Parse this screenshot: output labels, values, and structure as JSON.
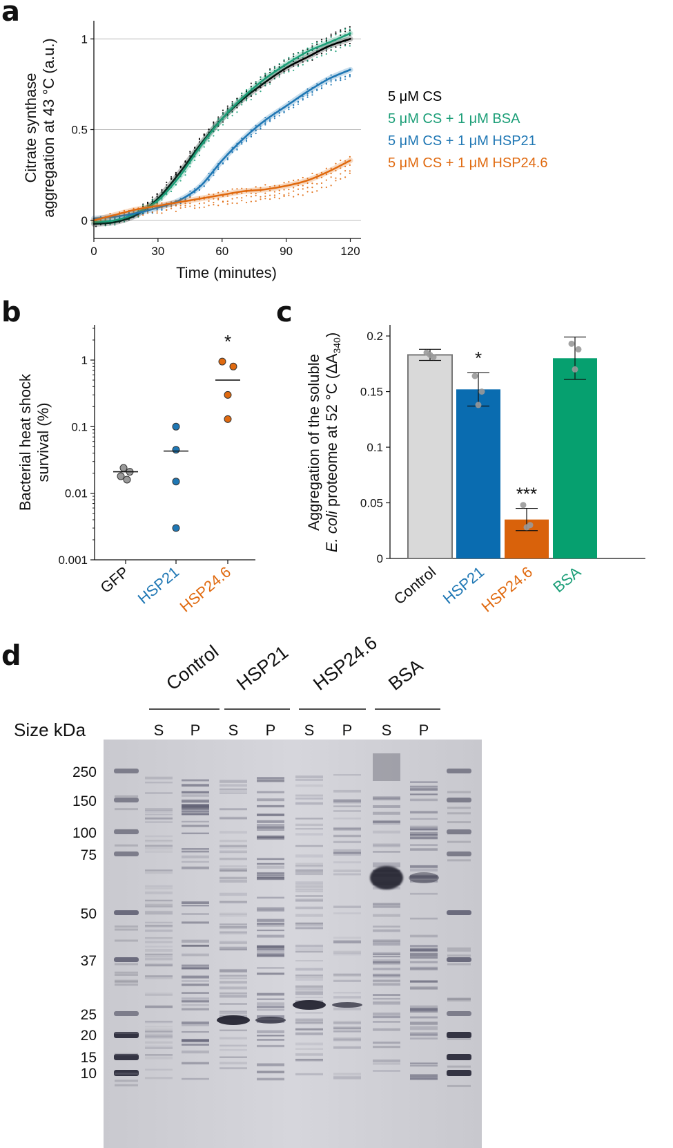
{
  "panel_labels": {
    "a": "a",
    "b": "b",
    "c": "c",
    "d": "d"
  },
  "colors": {
    "cs": "#000000",
    "bsa": "#1b9e77",
    "hsp21": "#1f77b4",
    "hsp246": "#e06a10",
    "control_bar": "#d9d9d9",
    "grid": "#bbbbbb"
  },
  "chart_data": [
    {
      "type": "line",
      "panel": "a",
      "xlabel": "Time (minutes)",
      "ylabel_line1": "Citrate synthase",
      "ylabel_line2": "aggregation at 43 °C  (a.u.)",
      "xlim": [
        0,
        125
      ],
      "ylim": [
        -0.1,
        1.1
      ],
      "xticks": [
        "0",
        "30",
        "60",
        "90",
        "120"
      ],
      "xtick_values": [
        0,
        30,
        60,
        90,
        120
      ],
      "yticks": [
        "0",
        "0.5",
        "1"
      ],
      "ytick_values": [
        0,
        0.5,
        1
      ],
      "x": [
        0,
        10,
        20,
        30,
        40,
        50,
        60,
        70,
        80,
        90,
        100,
        110,
        120
      ],
      "series": [
        {
          "name": "5 μM CS",
          "color": "#000000",
          "values": [
            -0.02,
            -0.01,
            0.03,
            0.12,
            0.26,
            0.42,
            0.56,
            0.67,
            0.76,
            0.84,
            0.9,
            0.96,
            1.0
          ]
        },
        {
          "name": "5 μM CS + 1 μM BSA",
          "color": "#1b9e77",
          "values": [
            -0.01,
            0.0,
            0.04,
            0.11,
            0.24,
            0.41,
            0.56,
            0.68,
            0.78,
            0.86,
            0.93,
            0.98,
            1.03
          ]
        },
        {
          "name": "5 μM CS + 1 μM HSP21",
          "color": "#1f77b4",
          "values": [
            0.01,
            0.02,
            0.04,
            0.07,
            0.11,
            0.19,
            0.33,
            0.45,
            0.55,
            0.63,
            0.71,
            0.78,
            0.83
          ]
        },
        {
          "name": "5 μM CS + 1 μM HSP24.6",
          "color": "#e06a10",
          "values": [
            0.0,
            0.03,
            0.06,
            0.08,
            0.1,
            0.12,
            0.14,
            0.16,
            0.17,
            0.19,
            0.22,
            0.27,
            0.33
          ]
        }
      ]
    },
    {
      "type": "scatter",
      "panel": "b",
      "scale": "log",
      "ylabel_line1": "Bacterial heat shock",
      "ylabel_line2": "survival (%)",
      "ylim": [
        0.001,
        3
      ],
      "yticks": [
        "0.001",
        "0.01",
        "0.1",
        "1"
      ],
      "ytick_values": [
        0.001,
        0.01,
        0.1,
        1
      ],
      "categories": [
        "GFP",
        "HSP21",
        "HSP24.6"
      ],
      "category_colors": [
        "#111111",
        "#1f77b4",
        "#e06a10"
      ],
      "point_colors": [
        "#999999",
        "#1f77b4",
        "#e06a10"
      ],
      "points": [
        [
          0.018,
          0.021,
          0.024,
          0.016
        ],
        [
          0.1,
          0.045,
          0.015,
          0.003
        ],
        [
          0.95,
          0.8,
          0.3,
          0.13
        ]
      ],
      "means": [
        0.021,
        0.043,
        0.5
      ],
      "significance": [
        "",
        "",
        "*"
      ]
    },
    {
      "type": "bar",
      "panel": "c",
      "ylabel_line1": "Aggregation of the soluble",
      "ylabel_line2_italic": "E. coli",
      "ylabel_line2_rest": " proteome at 52 °C (ΔA",
      "ylabel_sub": "340",
      "ylabel_close": ")",
      "ylim": [
        0,
        0.21
      ],
      "yticks": [
        "0",
        "0.05",
        "0.1",
        "0.15",
        "0.2"
      ],
      "ytick_values": [
        0,
        0.05,
        0.1,
        0.15,
        0.2
      ],
      "categories": [
        "Control",
        "HSP21",
        "HSP24.6",
        "BSA"
      ],
      "category_colors": [
        "#111111",
        "#1f77b4",
        "#e06a10",
        "#1b9e77"
      ],
      "bar_colors": [
        "#d9d9d9",
        "#0a6cb0",
        "#d9620b",
        "#06a06f"
      ],
      "values": [
        0.183,
        0.152,
        0.035,
        0.18
      ],
      "errors": [
        0.005,
        0.015,
        0.01,
        0.019
      ],
      "points": [
        [
          0.185,
          0.181,
          0.183
        ],
        [
          0.164,
          0.15,
          0.138
        ],
        [
          0.048,
          0.03,
          0.028
        ],
        [
          0.193,
          0.188,
          0.17
        ]
      ],
      "significance": [
        "",
        "*",
        "***",
        ""
      ]
    }
  ],
  "gel": {
    "size_label": "Size kDa",
    "groups": [
      "Control",
      "HSP21",
      "HSP24.6",
      "BSA"
    ],
    "lanes": [
      "S",
      "P",
      "S",
      "P",
      "S",
      "P",
      "S",
      "P"
    ],
    "ladder": [
      "250",
      "150",
      "100",
      "75",
      "50",
      "37",
      "25",
      "20",
      "15",
      "10"
    ]
  }
}
